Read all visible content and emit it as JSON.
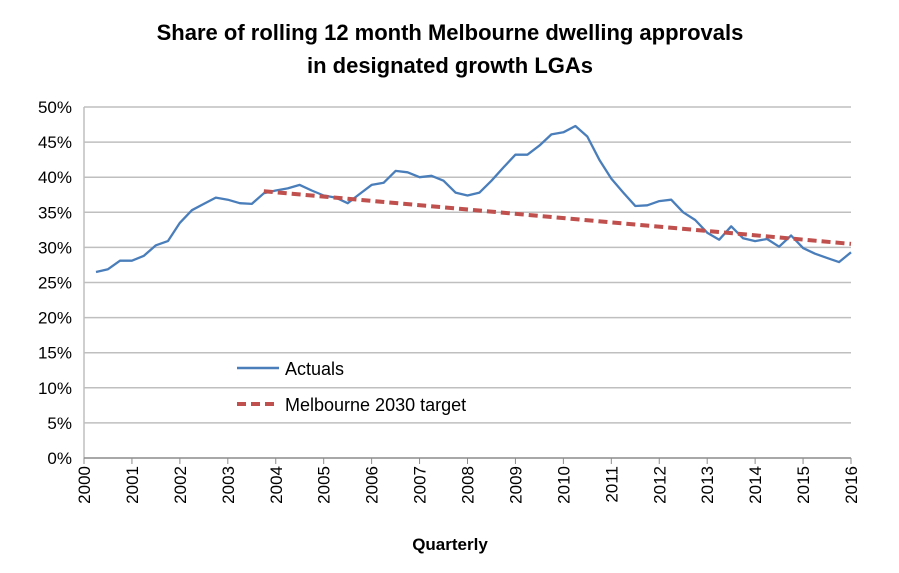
{
  "chart_data": {
    "type": "line",
    "title": [
      "Share of rolling 12 month Melbourne dwelling approvals",
      "in designated growth LGAs"
    ],
    "xlabel": "Quarterly",
    "ylabel": "",
    "xlim": [
      2000,
      2016
    ],
    "ylim": [
      0,
      50
    ],
    "x_ticks": [
      "2000",
      "2001",
      "2002",
      "2003",
      "2004",
      "2005",
      "2006",
      "2007",
      "2008",
      "2009",
      "2010",
      "2011",
      "2012",
      "2013",
      "2014",
      "2015",
      "2016"
    ],
    "y_ticks": [
      "0%",
      "5%",
      "10%",
      "15%",
      "20%",
      "25%",
      "30%",
      "35%",
      "40%",
      "45%",
      "50%"
    ],
    "grid": "horizontal",
    "legend_position": "center-left",
    "series": [
      {
        "name": "Actuals",
        "color": "#4a7ebb",
        "style": "solid",
        "x_start": 2000.25,
        "x_step": 0.25,
        "values": [
          26.5,
          26.9,
          28.1,
          28.1,
          28.8,
          30.3,
          30.9,
          33.5,
          35.3,
          36.2,
          37.1,
          36.8,
          36.3,
          36.2,
          37.7,
          38.1,
          38.4,
          38.9,
          38.1,
          37.4,
          37.1,
          36.3,
          37.6,
          38.9,
          39.2,
          40.9,
          40.7,
          40.0,
          40.2,
          39.5,
          37.8,
          37.4,
          37.8,
          39.5,
          41.4,
          43.2,
          43.2,
          44.5,
          46.1,
          46.4,
          47.3,
          45.8,
          42.5,
          39.8,
          37.8,
          35.9,
          36.0,
          36.6,
          36.8,
          35.0,
          33.9,
          32.1,
          31.1,
          33.0,
          31.3,
          30.9,
          31.2,
          30.1,
          31.7,
          29.9,
          29.1,
          28.5,
          27.9,
          29.3
        ]
      },
      {
        "name": "Melbourne 2030 target",
        "color": "#c0504d",
        "style": "dashed",
        "x": [
          2003.75,
          2016
        ],
        "values": [
          38.0,
          30.5
        ]
      }
    ]
  }
}
